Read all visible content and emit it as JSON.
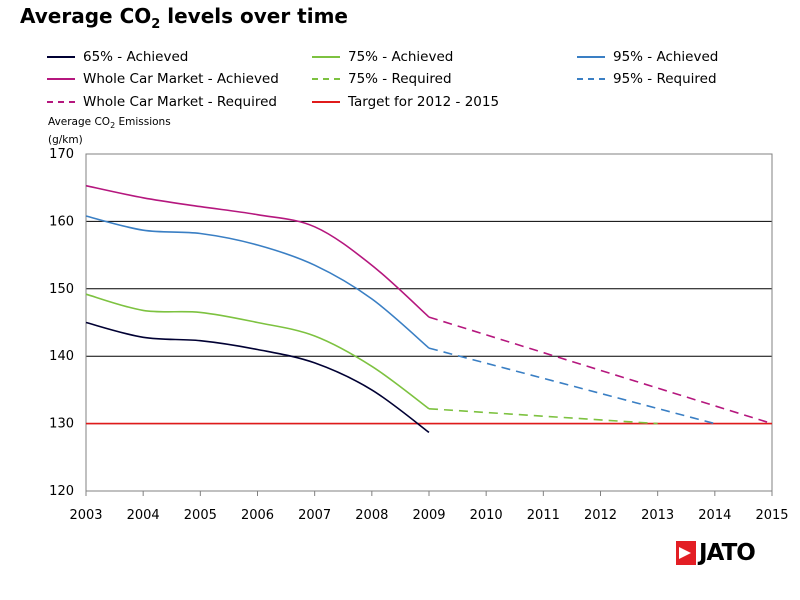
{
  "chart_data": {
    "type": "line",
    "title": "Average CO",
    "title_subscript": "2",
    "title_suffix": " levels over time",
    "ylabel_line1_prefix": "Average CO",
    "ylabel_line1_subscript": "2",
    "ylabel_line1_suffix": " Emissions",
    "ylabel_line2": "(g/km)",
    "xlabel": "",
    "xlim": [
      2003,
      2015
    ],
    "ylim": [
      120,
      170
    ],
    "x_ticks": [
      "2003",
      "2004",
      "2005",
      "2006",
      "2007",
      "2008",
      "2009",
      "2010",
      "2011",
      "2012",
      "2013",
      "2014",
      "2015"
    ],
    "y_ticks": [
      "170",
      "160",
      "150",
      "140",
      "130",
      "120"
    ],
    "grid": "horizontal",
    "series": [
      {
        "name": "65% - Achieved",
        "color": "#000033",
        "dash": "solid",
        "x": [
          2003,
          2004,
          2005,
          2006,
          2007,
          2008,
          2009
        ],
        "y": [
          145,
          142.8,
          142.3,
          141,
          139,
          135,
          128.7
        ]
      },
      {
        "name": "75% - Achieved",
        "color": "#7dc240",
        "dash": "solid",
        "x": [
          2003,
          2004,
          2005,
          2006,
          2007,
          2008,
          2009
        ],
        "y": [
          149.2,
          146.8,
          146.5,
          145,
          143,
          138.5,
          132.2
        ]
      },
      {
        "name": "95% - Achieved",
        "color": "#3a7fc4",
        "dash": "solid",
        "x": [
          2003,
          2004,
          2005,
          2006,
          2007,
          2008,
          2009
        ],
        "y": [
          160.8,
          158.7,
          158.2,
          156.5,
          153.5,
          148.5,
          141.2
        ]
      },
      {
        "name": "Whole Car Market - Achieved",
        "color": "#b5177e",
        "dash": "solid",
        "x": [
          2003,
          2004,
          2005,
          2006,
          2007,
          2008,
          2009
        ],
        "y": [
          165.3,
          163.5,
          162.2,
          161,
          159.2,
          153.5,
          145.8
        ]
      },
      {
        "name": "75% - Required",
        "color": "#7dc240",
        "dash": "dashed",
        "x": [
          2009,
          2013
        ],
        "y": [
          132.2,
          130
        ]
      },
      {
        "name": "95% - Required",
        "color": "#3a7fc4",
        "dash": "dashed",
        "x": [
          2009,
          2014
        ],
        "y": [
          141.2,
          130
        ]
      },
      {
        "name": "Whole Car Market - Required",
        "color": "#b5177e",
        "dash": "dashed",
        "x": [
          2009,
          2015
        ],
        "y": [
          145.8,
          130
        ]
      },
      {
        "name": "Target for 2012 - 2015",
        "color": "#e01b1b",
        "dash": "solid",
        "x": [
          2003,
          2015
        ],
        "y": [
          130,
          130
        ]
      }
    ],
    "legend_placement": "top",
    "legend": [
      {
        "label": "65% - Achieved",
        "color": "#000033",
        "dash": "solid"
      },
      {
        "label": "75% - Achieved",
        "color": "#7dc240",
        "dash": "solid"
      },
      {
        "label": "95% - Achieved",
        "color": "#3a7fc4",
        "dash": "solid"
      },
      {
        "label": "Whole Car Market - Achieved",
        "color": "#b5177e",
        "dash": "solid"
      },
      {
        "label": "75% - Required",
        "color": "#7dc240",
        "dash": "dashed"
      },
      {
        "label": "95% - Required",
        "color": "#3a7fc4",
        "dash": "dashed"
      },
      {
        "label": "Whole Car Market - Required",
        "color": "#b5177e",
        "dash": "dashed"
      },
      {
        "label": "Target for 2012 - 2015",
        "color": "#e01b1b",
        "dash": "solid"
      }
    ]
  },
  "brand": {
    "logo_text": "JATO",
    "logo_color": "#e31e24"
  }
}
